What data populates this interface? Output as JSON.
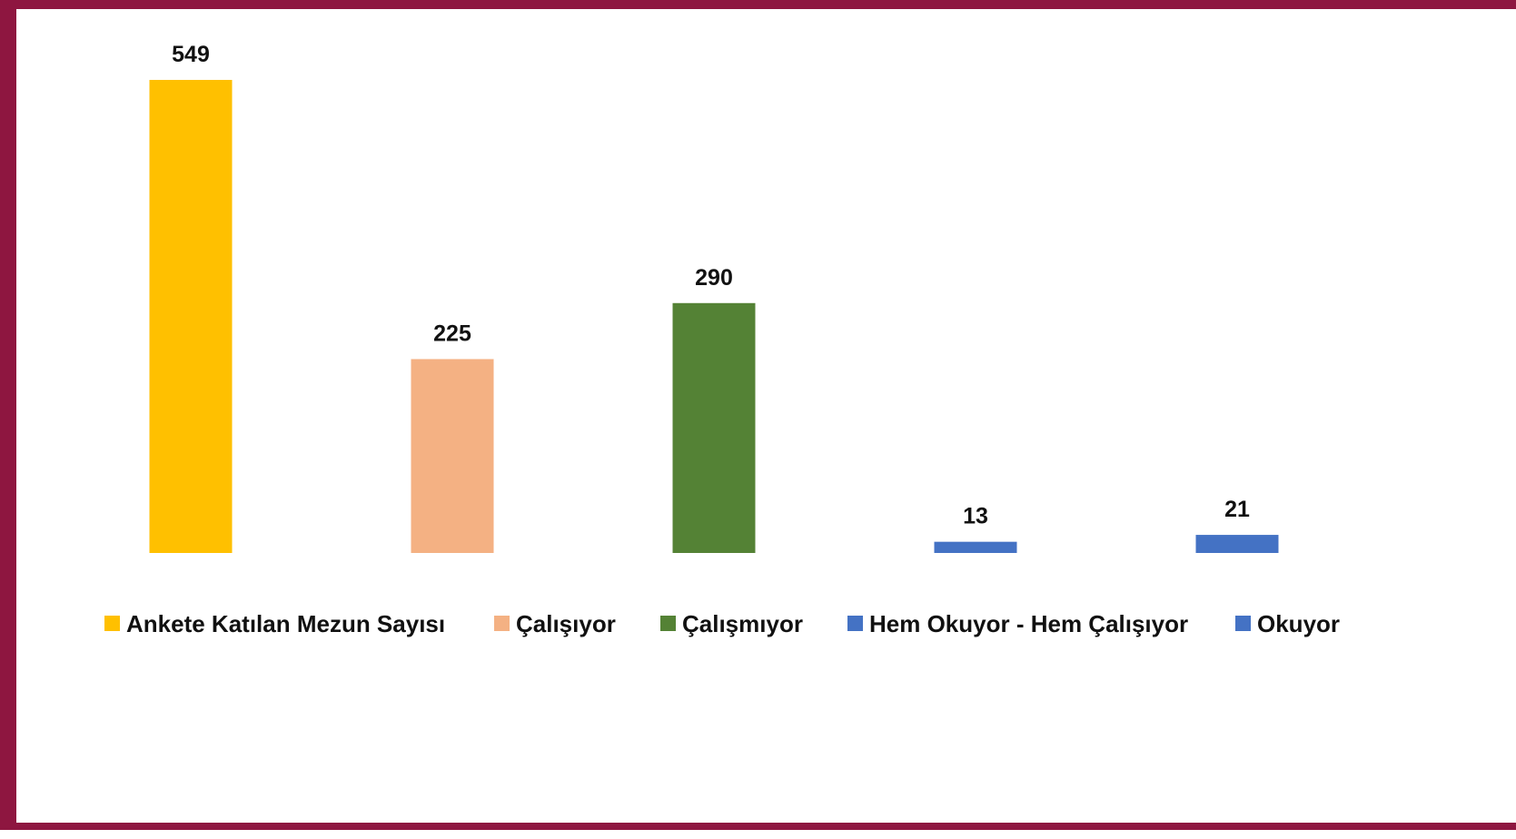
{
  "chart_data": {
    "type": "bar",
    "categories": [
      "Ankete Katılan Mezun Sayısı",
      "Çalışıyor",
      "Çalışmıyor",
      "Hem Okuyor - Hem Çalışıyor",
      "Okuyor"
    ],
    "values": [
      549,
      225,
      290,
      13,
      21
    ],
    "colors": [
      "#FFC000",
      "#F4B183",
      "#548235",
      "#4472C4",
      "#4472C4"
    ],
    "title": "",
    "xlabel": "",
    "ylabel": "",
    "ylim": [
      0,
      549
    ],
    "grid": false,
    "legend_position": "bottom",
    "data_labels": true
  },
  "frame": {
    "border_color": "#8E1640"
  }
}
